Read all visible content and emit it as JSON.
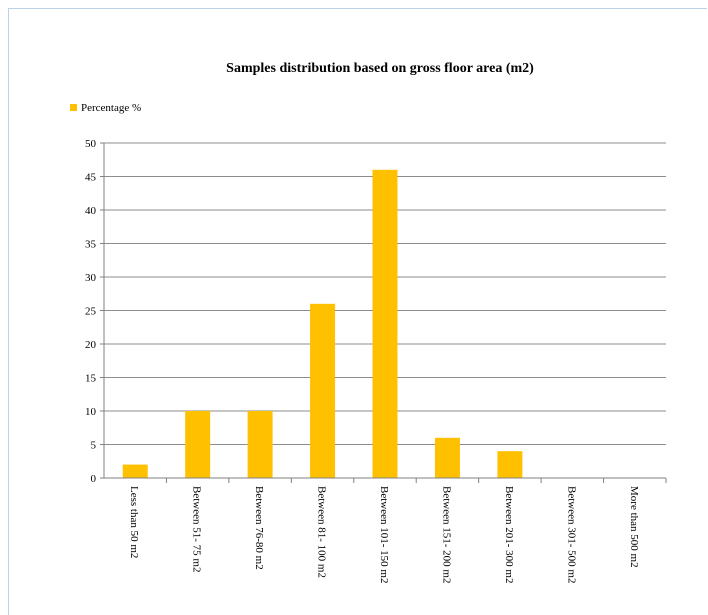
{
  "chart_data": {
    "type": "bar",
    "title": "Samples distribution based on gross floor area (m2)",
    "xlabel": "",
    "ylabel": "",
    "legend": {
      "position": "top-left"
    },
    "grid": true,
    "ylim": [
      0,
      50
    ],
    "yticks": [
      "0",
      "5",
      "10",
      "15",
      "20",
      "25",
      "30",
      "35",
      "40",
      "45",
      "50"
    ],
    "categories": [
      "Less than 50 m2",
      "Between 51- 75 m2",
      "Between 76-80 m2",
      "Between 81- 100 m2",
      "Between 101- 150 m2",
      "Between 151- 200 m2",
      "Between 201- 300 m2",
      "Between 301- 500 m2",
      "More than 500 m2"
    ],
    "series": [
      {
        "name": "Percentage %",
        "values": [
          2,
          10,
          10,
          26,
          46,
          6,
          4,
          0,
          0
        ]
      }
    ],
    "colors": {
      "bar": "#ffc000",
      "grid": "#8c8c8c",
      "axis": "#808080",
      "text": "#000000"
    }
  }
}
